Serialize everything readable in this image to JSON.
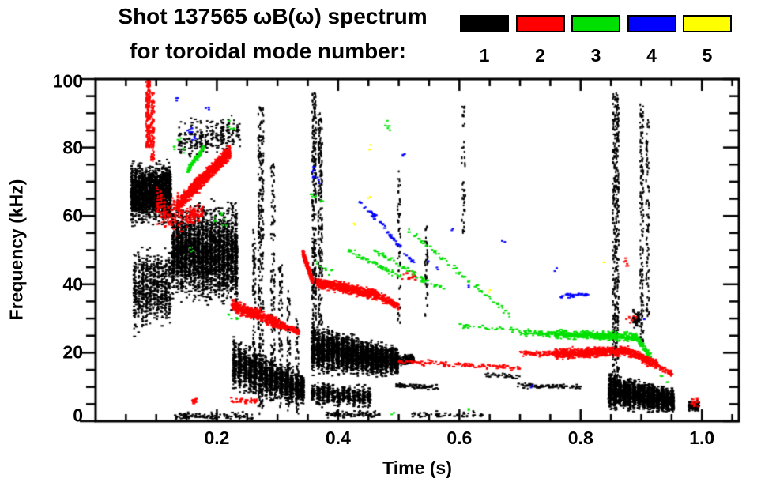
{
  "title": "Shot 137565 ωB(ω) spectrum",
  "subtitle": "for toroidal mode number:",
  "legend": {
    "modes": [
      {
        "label": "1",
        "color": "#000000"
      },
      {
        "label": "2",
        "color": "#ff0000"
      },
      {
        "label": "3",
        "color": "#00e000"
      },
      {
        "label": "4",
        "color": "#0000ff"
      },
      {
        "label": "5",
        "color": "#ffff00"
      }
    ]
  },
  "axes": {
    "x": {
      "label": "Time (s)",
      "range": [
        0,
        1.061
      ],
      "tick_values": [
        0.2,
        0.4,
        0.6,
        0.8,
        1.0
      ],
      "tick_labels": [
        "0.2",
        "0.4",
        "0.6",
        "0.8",
        "1.0"
      ],
      "minor_step": 0.05
    },
    "y": {
      "label": "Frequency (kHz)",
      "range": [
        0,
        100
      ],
      "tick_values": [
        0,
        20,
        40,
        60,
        80,
        100
      ],
      "tick_labels": [
        "0",
        "20",
        "40",
        "60",
        "80",
        "100"
      ],
      "minor_step": 5
    }
  },
  "chart_data": {
    "type": "scatter",
    "title": "Shot 137565 ωB(ω) spectrum for toroidal mode number",
    "xlabel": "Time (s)",
    "ylabel": "Frequency (kHz)",
    "xlim": [
      0,
      1.061
    ],
    "ylim": [
      0,
      100
    ],
    "legend_position": "top",
    "grid": false,
    "series_key": "toroidal mode number n=1..5 (black,red,green,blue,yellow)",
    "features": [
      {
        "m": 1,
        "k": "blob",
        "t": [
          0.058,
          0.125
        ],
        "fc": [
          66,
          67
        ],
        "sp": [
          7,
          7
        ],
        "n": 2000,
        "cols": 12
      },
      {
        "m": 1,
        "k": "blob",
        "t": [
          0.062,
          0.125
        ],
        "fc": [
          38,
          40
        ],
        "sp": [
          10,
          9
        ],
        "n": 700,
        "cols": 10
      },
      {
        "m": 1,
        "k": "blob",
        "t": [
          0.125,
          0.235
        ],
        "fc": [
          50,
          48
        ],
        "sp": [
          11,
          12
        ],
        "n": 3000,
        "cols": 16
      },
      {
        "m": 1,
        "k": "blob",
        "t": [
          0.135,
          0.24
        ],
        "fc": [
          82,
          84
        ],
        "sp": [
          5,
          5
        ],
        "n": 260,
        "cols": 12
      },
      {
        "m": 1,
        "k": "blob",
        "t": [
          0.225,
          0.345
        ],
        "fc": [
          17,
          9
        ],
        "sp": [
          6.5,
          3.5
        ],
        "n": 1800,
        "cols": 14
      },
      {
        "m": 1,
        "k": "vstreak",
        "t": [
          0.268,
          0.277
        ],
        "f": [
          2,
          92
        ],
        "n": 300
      },
      {
        "m": 1,
        "k": "vstreak",
        "t": [
          0.259,
          0.264
        ],
        "f": [
          8,
          58
        ],
        "n": 90
      },
      {
        "m": 1,
        "k": "vstreak",
        "t": [
          0.289,
          0.296
        ],
        "f": [
          6,
          75
        ],
        "n": 130
      },
      {
        "m": 1,
        "k": "vstreak",
        "t": [
          0.302,
          0.308
        ],
        "f": [
          4,
          46
        ],
        "n": 80
      },
      {
        "m": 1,
        "k": "vstreak",
        "t": [
          0.316,
          0.321
        ],
        "f": [
          3,
          38
        ],
        "n": 70
      },
      {
        "m": 1,
        "k": "vstreak",
        "t": [
          0.33,
          0.335
        ],
        "f": [
          2,
          30
        ],
        "n": 55
      },
      {
        "m": 1,
        "k": "blob",
        "t": [
          0.13,
          0.26
        ],
        "fc": [
          1.5,
          1.5
        ],
        "sp": [
          1,
          1
        ],
        "n": 120,
        "cols": 20
      },
      {
        "m": 1,
        "k": "vstreak",
        "t": [
          0.357,
          0.364
        ],
        "f": [
          25,
          96
        ],
        "n": 260
      },
      {
        "m": 1,
        "k": "vstreak",
        "t": [
          0.367,
          0.374
        ],
        "f": [
          28,
          90
        ],
        "n": 200
      },
      {
        "m": 1,
        "k": "blob",
        "t": [
          0.355,
          0.5
        ],
        "fc": [
          21,
          17.5
        ],
        "sp": [
          5.5,
          3.2
        ],
        "n": 3200,
        "cols": 18
      },
      {
        "m": 1,
        "k": "blob",
        "t": [
          0.355,
          0.455
        ],
        "fc": [
          8,
          7
        ],
        "sp": [
          3,
          2.5
        ],
        "n": 600,
        "cols": 12
      },
      {
        "m": 1,
        "k": "band",
        "t": [
          0.498,
          0.525
        ],
        "f": [
          17.5,
          18.5
        ],
        "th": 1.5,
        "n": 130
      },
      {
        "m": 1,
        "k": "band",
        "t": [
          0.495,
          0.565
        ],
        "f": [
          10.5,
          10
        ],
        "th": 0.9,
        "n": 70
      },
      {
        "m": 1,
        "k": "blob",
        "t": [
          0.38,
          0.47
        ],
        "fc": [
          2,
          2
        ],
        "sp": [
          1,
          1
        ],
        "n": 90,
        "cols": 14
      },
      {
        "m": 1,
        "k": "blob",
        "t": [
          0.52,
          0.64
        ],
        "fc": [
          1.8,
          1.8
        ],
        "sp": [
          0.9,
          0.9
        ],
        "n": 60,
        "cols": 12
      },
      {
        "m": 1,
        "k": "vstreak",
        "t": [
          0.498,
          0.503
        ],
        "f": [
          28,
          78
        ],
        "n": 55
      },
      {
        "m": 1,
        "k": "vstreak",
        "t": [
          0.543,
          0.548
        ],
        "f": [
          30,
          58
        ],
        "n": 40
      },
      {
        "m": 1,
        "k": "vstreak",
        "t": [
          0.604,
          0.61
        ],
        "f": [
          55,
          93
        ],
        "n": 45
      },
      {
        "m": 1,
        "k": "band",
        "t": [
          0.64,
          0.7
        ],
        "f": [
          13.5,
          13
        ],
        "th": 0.8,
        "n": 30
      },
      {
        "m": 1,
        "k": "band",
        "t": [
          0.695,
          0.8
        ],
        "f": [
          10.5,
          10
        ],
        "th": 0.8,
        "n": 80
      },
      {
        "m": 1,
        "k": "vstreak",
        "t": [
          0.853,
          0.863
        ],
        "f": [
          8,
          96
        ],
        "n": 420
      },
      {
        "m": 1,
        "k": "vstreak",
        "t": [
          0.898,
          0.904
        ],
        "f": [
          22,
          93
        ],
        "n": 150
      },
      {
        "m": 1,
        "k": "vstreak",
        "t": [
          0.908,
          0.913
        ],
        "f": [
          30,
          88
        ],
        "n": 90
      },
      {
        "m": 1,
        "k": "blob",
        "t": [
          0.845,
          0.955
        ],
        "fc": [
          9,
          6
        ],
        "sp": [
          4.2,
          2.8
        ],
        "n": 2400,
        "cols": 14
      },
      {
        "m": 1,
        "k": "blob",
        "t": [
          0.886,
          0.897
        ],
        "fc": [
          30,
          30
        ],
        "sp": [
          2.5,
          2.5
        ],
        "n": 50,
        "cols": 3
      },
      {
        "m": 1,
        "k": "blob",
        "t": [
          0.978,
          0.996
        ],
        "fc": [
          4.5,
          4.5
        ],
        "sp": [
          1.4,
          1.4
        ],
        "n": 110,
        "cols": 4
      },
      {
        "m": 2,
        "k": "vstreak",
        "t": [
          0.083,
          0.09
        ],
        "f": [
          80,
          100
        ],
        "n": 150
      },
      {
        "m": 2,
        "k": "vstreak",
        "t": [
          0.091,
          0.097
        ],
        "f": [
          76,
          96
        ],
        "n": 110
      },
      {
        "m": 2,
        "k": "blob",
        "t": [
          0.1,
          0.145
        ],
        "fc": [
          62,
          60
        ],
        "sp": [
          5,
          5
        ],
        "n": 160,
        "cols": 8
      },
      {
        "m": 2,
        "k": "band",
        "t": [
          0.135,
          0.222
        ],
        "f": [
          63,
          79
        ],
        "th": 2.5,
        "n": 800
      },
      {
        "m": 2,
        "k": "blob",
        "t": [
          0.148,
          0.178
        ],
        "fc": [
          60,
          61
        ],
        "sp": [
          2.5,
          2.5
        ],
        "n": 90,
        "cols": 5
      },
      {
        "m": 2,
        "k": "band",
        "t": [
          0.225,
          0.302
        ],
        "f": [
          34,
          28.5
        ],
        "th": 2,
        "n": 420
      },
      {
        "m": 2,
        "k": "band",
        "t": [
          0.302,
          0.335
        ],
        "f": [
          28.5,
          26
        ],
        "th": 1.2,
        "n": 90
      },
      {
        "m": 2,
        "k": "blob",
        "t": [
          0.158,
          0.168
        ],
        "fc": [
          6,
          6
        ],
        "sp": [
          0.8,
          0.8
        ],
        "n": 14,
        "cols": 2
      },
      {
        "m": 2,
        "k": "blob",
        "t": [
          0.222,
          0.268
        ],
        "fc": [
          6,
          6
        ],
        "sp": [
          1,
          1
        ],
        "n": 40,
        "cols": 6
      },
      {
        "m": 2,
        "k": "band",
        "t": [
          0.342,
          0.359
        ],
        "f": [
          49,
          40.5
        ],
        "th": 1.4,
        "n": 170
      },
      {
        "m": 2,
        "k": "band",
        "t": [
          0.365,
          0.462
        ],
        "f": [
          40.5,
          37
        ],
        "th": 1.7,
        "n": 600
      },
      {
        "m": 2,
        "k": "band",
        "t": [
          0.462,
          0.5
        ],
        "f": [
          37,
          33.5
        ],
        "th": 1.4,
        "n": 150
      },
      {
        "m": 2,
        "k": "band",
        "t": [
          0.5,
          0.7
        ],
        "f": [
          17.5,
          15.5
        ],
        "th": 0.9,
        "n": 120
      },
      {
        "m": 2,
        "k": "blob",
        "t": [
          0.5,
          0.53
        ],
        "fc": [
          42.5,
          42.5
        ],
        "sp": [
          1.2,
          1.2
        ],
        "n": 18,
        "cols": 3
      },
      {
        "m": 2,
        "k": "band",
        "t": [
          0.7,
          0.758
        ],
        "f": [
          19.8,
          19.8
        ],
        "th": 1,
        "n": 70
      },
      {
        "m": 2,
        "k": "band",
        "t": [
          0.758,
          0.87
        ],
        "f": [
          19.5,
          20.5
        ],
        "th": 1.7,
        "n": 550
      },
      {
        "m": 2,
        "k": "band",
        "t": [
          0.87,
          0.927
        ],
        "f": [
          21,
          16.5
        ],
        "th": 1.7,
        "n": 260
      },
      {
        "m": 2,
        "k": "band",
        "t": [
          0.928,
          0.952
        ],
        "f": [
          16,
          13.5
        ],
        "th": 0.9,
        "n": 45
      },
      {
        "m": 2,
        "k": "pts",
        "pts": [
          [
            0.878,
            30
          ],
          [
            0.884,
            29
          ],
          [
            0.889,
            30.5
          ],
          [
            0.874,
            47
          ],
          [
            0.877,
            45.5
          ]
        ],
        "c": 3,
        "j": 0.8
      },
      {
        "m": 2,
        "k": "blob",
        "t": [
          0.982,
          0.994
        ],
        "fc": [
          5.5,
          5.5
        ],
        "sp": [
          1,
          1
        ],
        "n": 20,
        "cols": 3
      },
      {
        "m": 3,
        "k": "band",
        "t": [
          0.152,
          0.165
        ],
        "f": [
          73,
          77
        ],
        "th": 1,
        "n": 45
      },
      {
        "m": 3,
        "k": "band",
        "t": [
          0.166,
          0.178
        ],
        "f": [
          76,
          80
        ],
        "th": 1,
        "n": 45
      },
      {
        "m": 3,
        "k": "pts",
        "pts": [
          [
            0.13,
            80
          ],
          [
            0.138,
            82
          ],
          [
            0.145,
            79
          ],
          [
            0.22,
            87
          ],
          [
            0.225,
            86
          ],
          [
            0.48,
            87
          ],
          [
            0.485,
            86
          ]
        ],
        "c": 3,
        "j": 1
      },
      {
        "m": 3,
        "k": "pts",
        "pts": [
          [
            0.198,
            59
          ],
          [
            0.205,
            60.5
          ],
          [
            0.213,
            58
          ],
          [
            0.158,
            50
          ],
          [
            0.222,
            30.5
          ],
          [
            0.235,
            29.5
          ]
        ],
        "c": 3,
        "j": 1
      },
      {
        "m": 3,
        "k": "pts",
        "pts": [
          [
            0.356,
            66
          ],
          [
            0.363,
            65
          ],
          [
            0.372,
            64
          ],
          [
            0.368,
            46
          ],
          [
            0.378,
            44.5
          ],
          [
            0.388,
            43.5
          ]
        ],
        "c": 3,
        "j": 1
      },
      {
        "m": 3,
        "k": "band",
        "t": [
          0.415,
          0.505
        ],
        "f": [
          50,
          42
        ],
        "th": 1,
        "n": 55
      },
      {
        "m": 3,
        "k": "band",
        "t": [
          0.46,
          0.575
        ],
        "f": [
          50,
          38
        ],
        "th": 1,
        "n": 55
      },
      {
        "m": 3,
        "k": "band",
        "t": [
          0.515,
          0.69
        ],
        "f": [
          56,
          30
        ],
        "th": 1,
        "n": 70
      },
      {
        "m": 3,
        "k": "band",
        "t": [
          0.6,
          0.7
        ],
        "f": [
          28,
          26.5
        ],
        "th": 0.8,
        "n": 35
      },
      {
        "m": 3,
        "k": "band",
        "t": [
          0.7,
          0.757
        ],
        "f": [
          26,
          25.5
        ],
        "th": 1,
        "n": 60
      },
      {
        "m": 3,
        "k": "band",
        "t": [
          0.757,
          0.893
        ],
        "f": [
          25.5,
          24.5
        ],
        "th": 1.4,
        "n": 420
      },
      {
        "m": 3,
        "k": "band",
        "t": [
          0.893,
          0.916
        ],
        "f": [
          24,
          19
        ],
        "th": 1.2,
        "n": 70
      },
      {
        "m": 3,
        "k": "pts",
        "pts": [
          [
            0.935,
            12.5
          ],
          [
            0.942,
            11.5
          ],
          [
            0.618,
            2.8
          ],
          [
            0.49,
            2
          ],
          [
            0.522,
            44
          ],
          [
            0.54,
            41
          ]
        ],
        "c": 2,
        "j": 0.8
      },
      {
        "m": 4,
        "k": "pts",
        "pts": [
          [
            0.154,
            84
          ],
          [
            0.158,
            85.5
          ],
          [
            0.162,
            83
          ],
          [
            0.135,
            93.5
          ],
          [
            0.184,
            92
          ]
        ],
        "c": 3,
        "j": 1
      },
      {
        "m": 4,
        "k": "pts",
        "pts": [
          [
            0.358,
            72
          ],
          [
            0.362,
            74
          ],
          [
            0.368,
            70.5
          ],
          [
            0.508,
            78.5
          ]
        ],
        "c": 3,
        "j": 1
      },
      {
        "m": 4,
        "k": "band",
        "t": [
          0.435,
          0.478
        ],
        "f": [
          64,
          57
        ],
        "th": 0.9,
        "n": 28
      },
      {
        "m": 4,
        "k": "band",
        "t": [
          0.478,
          0.53
        ],
        "f": [
          56,
          45
        ],
        "th": 0.9,
        "n": 30
      },
      {
        "m": 4,
        "k": "pts",
        "pts": [
          [
            0.548,
            47
          ],
          [
            0.565,
            44
          ],
          [
            0.59,
            56
          ],
          [
            0.615,
            40
          ],
          [
            0.672,
            52
          ]
        ],
        "c": 2,
        "j": 1
      },
      {
        "m": 4,
        "k": "band",
        "t": [
          0.765,
          0.812
        ],
        "f": [
          36.5,
          37
        ],
        "th": 0.8,
        "n": 35
      },
      {
        "m": 4,
        "k": "pts",
        "pts": [
          [
            0.903,
            30
          ],
          [
            0.72,
            10.5
          ],
          [
            0.758,
            44
          ]
        ],
        "c": 2,
        "j": 0.8
      },
      {
        "m": 5,
        "k": "pts",
        "pts": [
          [
            0.452,
            80
          ],
          [
            0.451,
            65.5
          ],
          [
            0.427,
            57.5
          ],
          [
            0.648,
            38
          ],
          [
            0.836,
            46.5
          ]
        ],
        "c": 2,
        "j": 0.8
      }
    ]
  }
}
